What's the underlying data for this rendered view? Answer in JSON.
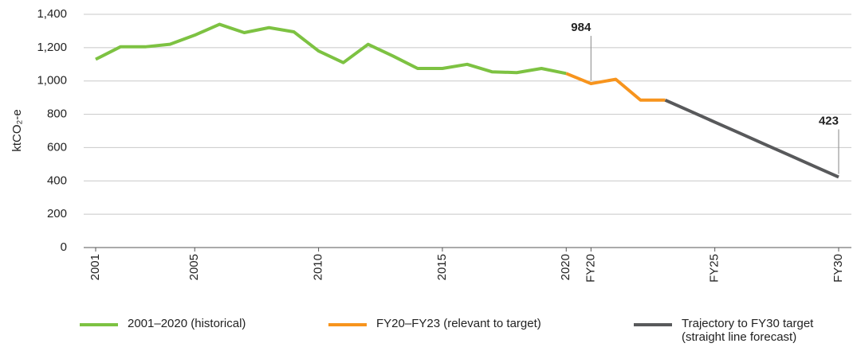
{
  "chart_data": {
    "type": "line",
    "y_label": "ktCO₂-e",
    "categories": [
      "2001",
      null,
      null,
      null,
      "2005",
      null,
      null,
      null,
      null,
      "2010",
      null,
      null,
      null,
      null,
      "2015",
      null,
      null,
      null,
      null,
      "2020",
      "FY20",
      null,
      null,
      null,
      null,
      "FY25",
      null,
      null,
      null,
      null,
      "FY30"
    ],
    "series": [
      {
        "name": "2001–2020 (historical)",
        "color": "#7dc242",
        "values": [
          1130,
          1205,
          1205,
          1220,
          1275,
          1340,
          1290,
          1320,
          1295,
          1180,
          1110,
          1220,
          1150,
          1075,
          1075,
          1100,
          1055,
          1050,
          1075,
          1045,
          null,
          null,
          null,
          null,
          null,
          null,
          null,
          null,
          null,
          null,
          null
        ]
      },
      {
        "name": "FY20–FY23 (relevant to target)",
        "color": "#f7941d",
        "values": [
          null,
          null,
          null,
          null,
          null,
          null,
          null,
          null,
          null,
          null,
          null,
          null,
          null,
          null,
          null,
          null,
          null,
          null,
          null,
          1045,
          984,
          1010,
          885,
          885,
          null,
          null,
          null,
          null,
          null,
          null,
          null
        ]
      },
      {
        "name": "Trajectory to FY30 target (straight line forecast)",
        "color": "#58595b",
        "values": [
          null,
          null,
          null,
          null,
          null,
          null,
          null,
          null,
          null,
          null,
          null,
          null,
          null,
          null,
          null,
          null,
          null,
          null,
          null,
          null,
          null,
          null,
          null,
          885,
          819,
          753,
          687,
          621,
          555,
          489,
          423
        ]
      }
    ],
    "annotations": [
      {
        "category": "FY20",
        "value": 984
      },
      {
        "category": "FY30",
        "value": 423
      }
    ],
    "ylim": [
      0,
      1400
    ],
    "yticks": [
      0,
      200,
      400,
      600,
      800,
      {
        "value": 1000,
        "label": "1,000"
      },
      {
        "value": 1200,
        "label": "1,200"
      },
      {
        "value": 1400,
        "label": "1,400"
      }
    ],
    "grid": true
  }
}
